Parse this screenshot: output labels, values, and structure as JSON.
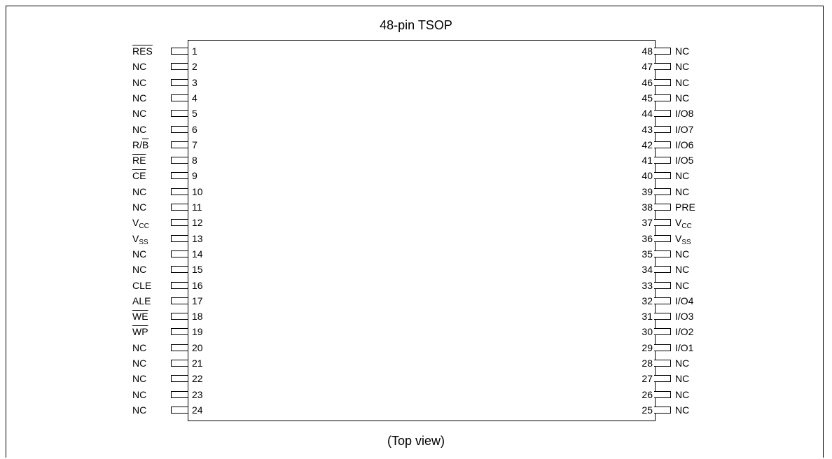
{
  "title": "48-pin TSOP",
  "caption": "(Top view)",
  "left_pins": [
    {
      "num": "1",
      "name": "RES",
      "overline": true
    },
    {
      "num": "2",
      "name": "NC"
    },
    {
      "num": "3",
      "name": "NC"
    },
    {
      "num": "4",
      "name": "NC"
    },
    {
      "num": "5",
      "name": "NC"
    },
    {
      "num": "6",
      "name": "NC"
    },
    {
      "num": "7",
      "name": "R/",
      "name_bar": "B"
    },
    {
      "num": "8",
      "name": "RE",
      "overline": true
    },
    {
      "num": "9",
      "name": "CE",
      "overline": true
    },
    {
      "num": "10",
      "name": "NC"
    },
    {
      "num": "11",
      "name": "NC"
    },
    {
      "num": "12",
      "name": "V",
      "sub": "CC"
    },
    {
      "num": "13",
      "name": "V",
      "sub": "SS"
    },
    {
      "num": "14",
      "name": "NC"
    },
    {
      "num": "15",
      "name": "NC"
    },
    {
      "num": "16",
      "name": "CLE"
    },
    {
      "num": "17",
      "name": "ALE"
    },
    {
      "num": "18",
      "name": "WE",
      "overline": true
    },
    {
      "num": "19",
      "name": "WP",
      "overline": true
    },
    {
      "num": "20",
      "name": "NC"
    },
    {
      "num": "21",
      "name": "NC"
    },
    {
      "num": "22",
      "name": "NC"
    },
    {
      "num": "23",
      "name": "NC"
    },
    {
      "num": "24",
      "name": "NC"
    }
  ],
  "right_pins": [
    {
      "num": "48",
      "name": "NC"
    },
    {
      "num": "47",
      "name": "NC"
    },
    {
      "num": "46",
      "name": "NC"
    },
    {
      "num": "45",
      "name": "NC"
    },
    {
      "num": "44",
      "name": "I/O8"
    },
    {
      "num": "43",
      "name": "I/O7"
    },
    {
      "num": "42",
      "name": "I/O6"
    },
    {
      "num": "41",
      "name": "I/O5"
    },
    {
      "num": "40",
      "name": "NC"
    },
    {
      "num": "39",
      "name": "NC"
    },
    {
      "num": "38",
      "name": "PRE"
    },
    {
      "num": "37",
      "name": "V",
      "sub": "CC"
    },
    {
      "num": "36",
      "name": "V",
      "sub": "SS"
    },
    {
      "num": "35",
      "name": "NC"
    },
    {
      "num": "34",
      "name": "NC"
    },
    {
      "num": "33",
      "name": "NC"
    },
    {
      "num": "32",
      "name": "I/O4"
    },
    {
      "num": "31",
      "name": "I/O3"
    },
    {
      "num": "30",
      "name": "I/O2"
    },
    {
      "num": "29",
      "name": "I/O1"
    },
    {
      "num": "28",
      "name": "NC"
    },
    {
      "num": "27",
      "name": "NC"
    },
    {
      "num": "26",
      "name": "NC"
    },
    {
      "num": "25",
      "name": "NC"
    }
  ]
}
